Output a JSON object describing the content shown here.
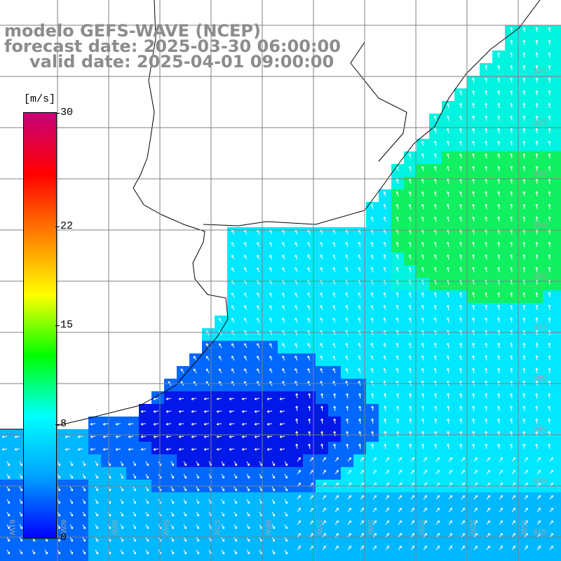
{
  "header": {
    "line1": "modelo GEFS-WAVE (NCEP)",
    "line2": "forecast date: 2025-03-30 06:00:00",
    "line3": "valid date: 2025-04-01 09:00:00"
  },
  "legend": {
    "unit": "[m/s]",
    "ticks": [
      {
        "label": "30",
        "value": 30
      },
      {
        "label": "22",
        "value": 22
      },
      {
        "label": "15",
        "value": 15
      },
      {
        "label": "8",
        "value": 8
      },
      {
        "label": "0",
        "value": 0
      }
    ],
    "colors": [
      "#0000ff",
      "#00a0ff",
      "#00ffff",
      "#00ff00",
      "#ffff00",
      "#ff8000",
      "#ff0000",
      "#c8007a"
    ]
  },
  "grid": {
    "lat_labels": [
      "32S",
      "33S",
      "34S",
      "35S",
      "36S",
      "37S",
      "38S",
      "39S",
      "40S",
      "41S"
    ],
    "lon_labels": [
      "61W",
      "60W",
      "59W",
      "58W",
      "57W",
      "56W",
      "55W",
      "54W",
      "53W",
      "52W",
      "51W"
    ]
  },
  "field": {
    "description_colors": {
      "deep": "#0018e8",
      "blue": "#0068ff",
      "sky": "#00b8ff",
      "cyan": "#00e8ff",
      "aqua": "#00f4e0",
      "green": "#10f060"
    }
  }
}
